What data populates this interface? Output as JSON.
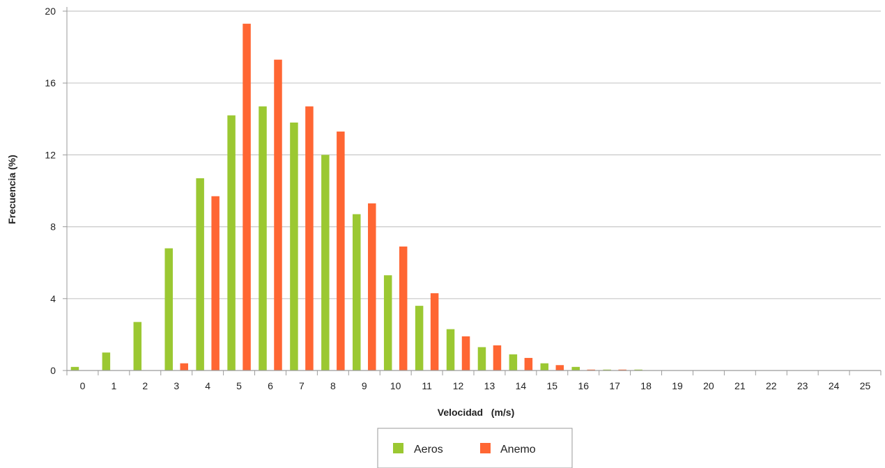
{
  "chart_data": {
    "type": "bar",
    "xlabel": "Velocidad   (m/s)",
    "ylabel": "Frecuencia (%)",
    "categories": [
      "0",
      "1",
      "2",
      "3",
      "4",
      "5",
      "6",
      "7",
      "8",
      "9",
      "10",
      "11",
      "12",
      "13",
      "14",
      "15",
      "16",
      "17",
      "18",
      "19",
      "20",
      "21",
      "22",
      "23",
      "24",
      "25"
    ],
    "ylim": [
      0,
      20
    ],
    "yticks": [
      0,
      4,
      8,
      12,
      16,
      20
    ],
    "grid": true,
    "legend_position": "bottom",
    "series": [
      {
        "name": "Aeros",
        "color": "#9bc832",
        "values": [
          0.2,
          1.0,
          2.7,
          6.8,
          10.7,
          14.2,
          14.7,
          13.8,
          12.0,
          8.7,
          5.3,
          3.6,
          2.3,
          1.3,
          0.9,
          0.4,
          0.2,
          0.05,
          0.05,
          0,
          0,
          0,
          0,
          0,
          0,
          0
        ]
      },
      {
        "name": "Anemo",
        "color": "#ff6633",
        "values": [
          0,
          0,
          0,
          0.4,
          9.7,
          19.3,
          17.3,
          14.7,
          13.3,
          9.3,
          6.9,
          4.3,
          1.9,
          1.4,
          0.7,
          0.3,
          0.05,
          0.05,
          0,
          0,
          0,
          0,
          0,
          0,
          0,
          0
        ]
      }
    ]
  }
}
